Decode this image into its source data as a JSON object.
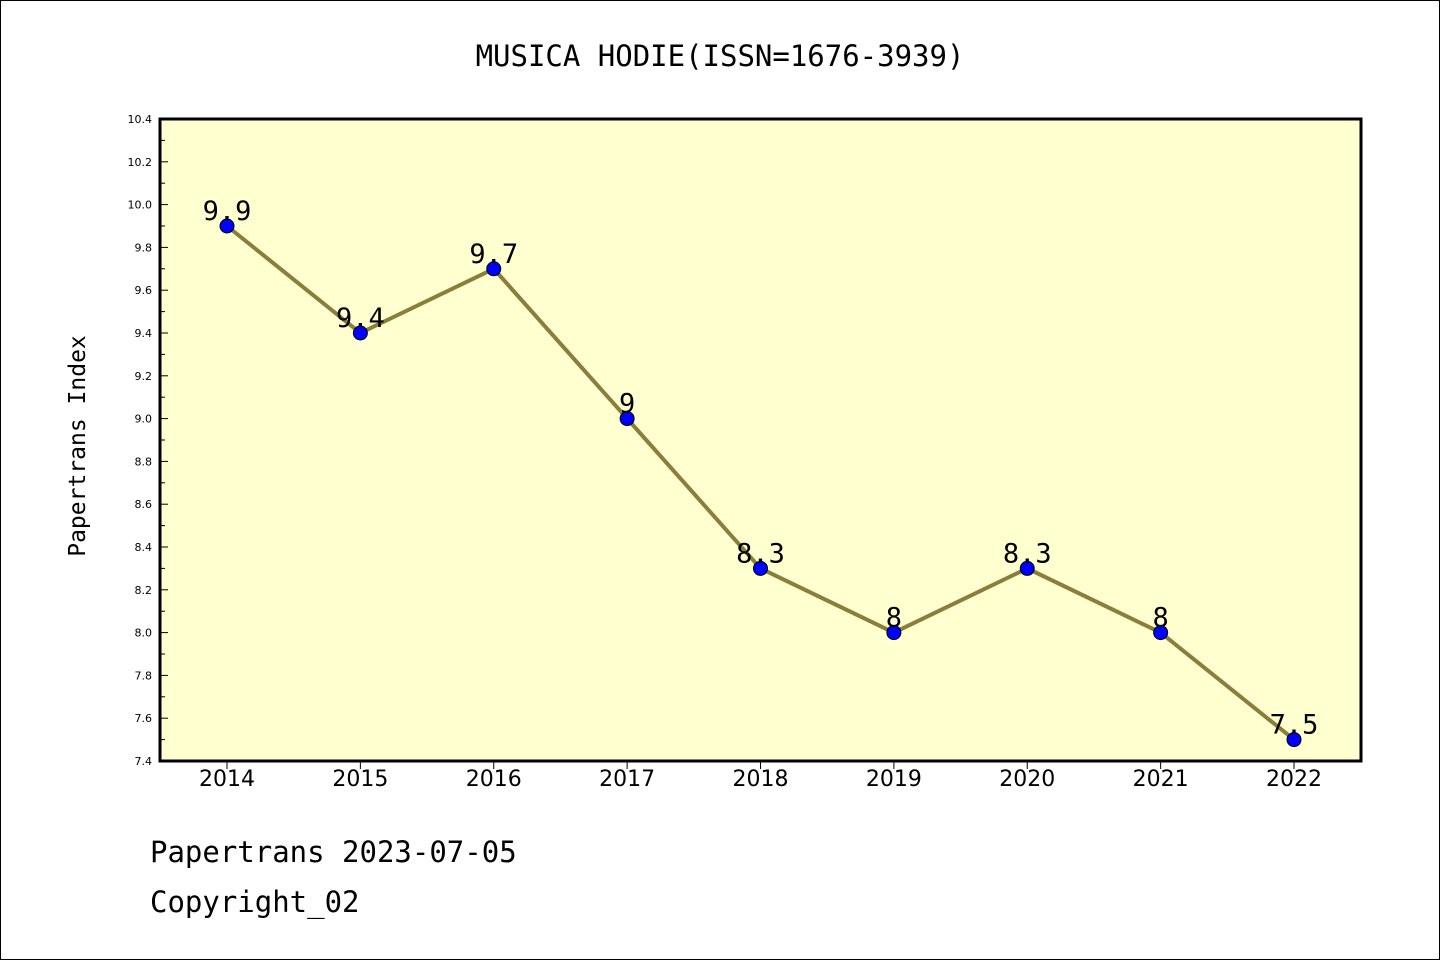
{
  "chart_data": {
    "type": "line",
    "title": "MUSICA HODIE(ISSN=1676-3939)",
    "xlabel": "",
    "ylabel": "Papertrans Index",
    "categories": [
      "2014",
      "2015",
      "2016",
      "2017",
      "2018",
      "2019",
      "2020",
      "2021",
      "2022"
    ],
    "values": [
      9.9,
      9.4,
      9.7,
      9.0,
      8.3,
      8.0,
      8.3,
      8.0,
      7.5
    ],
    "data_labels": [
      "9.9",
      "9.4",
      "9.7",
      "9",
      "8.3",
      "8",
      "8.3",
      "8",
      "7.5"
    ],
    "ylim": [
      7.4,
      10.4
    ],
    "yticks": [
      "7.4",
      "7.6",
      "7.8",
      "8.0",
      "8.2",
      "8.4",
      "8.6",
      "8.8",
      "9.0",
      "9.2",
      "9.4",
      "9.6",
      "9.8",
      "10.0",
      "10.2",
      "10.4"
    ],
    "grid": false,
    "legend": "none",
    "colors": {
      "plot_background": "#ffffd0",
      "line": "#8b7d3a",
      "marker": "#0000ff"
    }
  },
  "footer": {
    "line1": "Papertrans 2023-07-05",
    "line2": "Copyright_02"
  }
}
